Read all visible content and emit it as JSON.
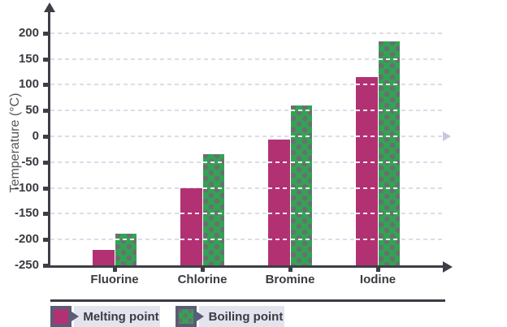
{
  "chart_data": {
    "type": "bar",
    "title": "",
    "categories": [
      "Fluorine",
      "Chlorine",
      "Bromine",
      "Iodine"
    ],
    "series": [
      {
        "name": "Melting point",
        "values": [
          -220,
          -101,
          -7,
          114
        ],
        "color": "#b23173",
        "pattern": "solid"
      },
      {
        "name": "Boiling point",
        "values": [
          -188,
          -35,
          59,
          184
        ],
        "color": "#31a453",
        "pattern": "dots"
      }
    ],
    "xlabel": "",
    "ylabel": "Temperature (°C)",
    "ylim": [
      -250,
      200
    ],
    "yticks": [
      200,
      150,
      100,
      50,
      0,
      -50,
      -100,
      -150,
      -200,
      -250
    ],
    "grid": "horizontal dashed",
    "legend_position": "bottom"
  },
  "colors": {
    "melting_bar": "#b23173",
    "boiling_bar": "#31a453",
    "boiling_dots": "#746876",
    "axis": "#3e3e46",
    "tick_text": "#3b3b42",
    "axis_title_text": "#55555c",
    "gridline": "#dcdcea",
    "zero_line_arrow": "#c7c7df",
    "legend_frame": "#5c5c78",
    "legend_label_bg": "#e4e4ef",
    "legend_rule": "#3c3c44",
    "background": "#ffffff"
  }
}
